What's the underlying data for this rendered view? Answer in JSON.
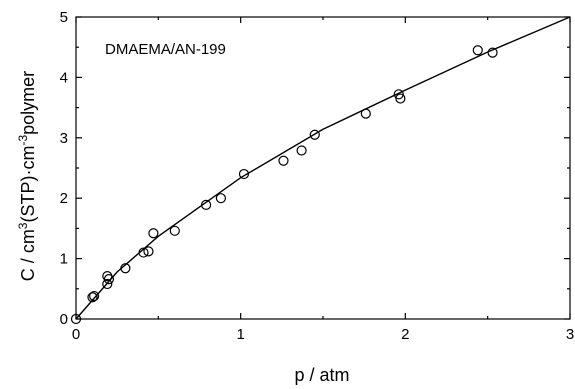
{
  "chart_data": {
    "type": "scatter",
    "title": "",
    "annotation": "DMAEMA/AN-199",
    "xlabel": "p / atm",
    "ylabel": {
      "pre": "C / cm",
      "sup1": "3",
      "mid": "(STP)·cm",
      "sup2": "-3",
      "post": "polymer"
    },
    "xlim": [
      0,
      3
    ],
    "ylim": [
      0,
      5
    ],
    "xticks": [
      0,
      1,
      2,
      3
    ],
    "yticks": [
      0,
      1,
      2,
      3,
      4,
      5
    ],
    "grid": false,
    "series": [
      {
        "marker": "open-circle",
        "points": [
          [
            0.0,
            0.0
          ],
          [
            0.1,
            0.36
          ],
          [
            0.11,
            0.38
          ],
          [
            0.19,
            0.58
          ],
          [
            0.19,
            0.71
          ],
          [
            0.2,
            0.66
          ],
          [
            0.3,
            0.84
          ],
          [
            0.41,
            1.1
          ],
          [
            0.44,
            1.12
          ],
          [
            0.47,
            1.42
          ],
          [
            0.6,
            1.46
          ],
          [
            0.79,
            1.89
          ],
          [
            0.88,
            2.0
          ],
          [
            1.02,
            2.4
          ],
          [
            1.26,
            2.62
          ],
          [
            1.37,
            2.79
          ],
          [
            1.45,
            3.05
          ],
          [
            1.76,
            3.4
          ],
          [
            1.96,
            3.72
          ],
          [
            1.97,
            3.65
          ],
          [
            2.44,
            4.45
          ],
          [
            2.53,
            4.41
          ]
        ]
      },
      {
        "type": "line",
        "points": [
          [
            0.0,
            0.0
          ],
          [
            0.25,
            0.78
          ],
          [
            0.5,
            1.37
          ],
          [
            1.0,
            2.34
          ],
          [
            1.5,
            3.14
          ],
          [
            2.0,
            3.79
          ],
          [
            2.5,
            4.42
          ],
          [
            3.0,
            5.0
          ]
        ]
      }
    ]
  }
}
